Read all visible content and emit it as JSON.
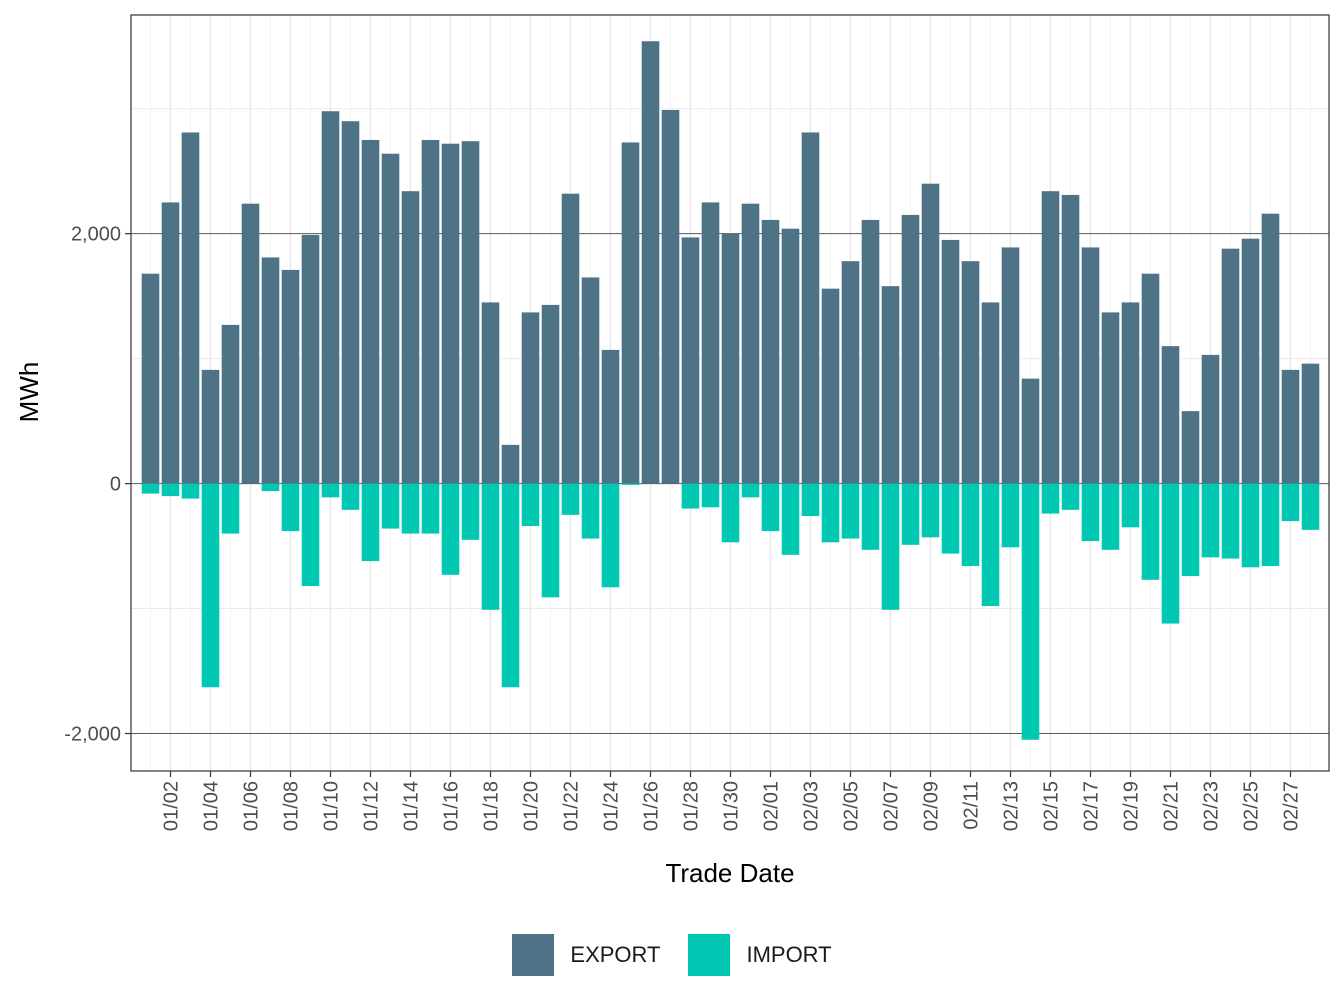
{
  "chart_data": {
    "type": "bar",
    "stacked": true,
    "xlabel": "Trade Date",
    "ylabel": "MWh",
    "ylim": [
      -2300,
      3750
    ],
    "yticks": [
      -2000,
      0,
      2000
    ],
    "ytick_labels": [
      "-2,000",
      "0",
      "2,000"
    ],
    "xtick_labels": [
      "01/02",
      "01/04",
      "01/06",
      "01/08",
      "01/10",
      "01/12",
      "01/14",
      "01/16",
      "01/18",
      "01/20",
      "01/22",
      "01/24",
      "01/26",
      "01/28",
      "01/30",
      "02/01",
      "02/03",
      "02/05",
      "02/07",
      "02/09",
      "02/11",
      "02/13",
      "02/15",
      "02/17",
      "02/19",
      "02/21",
      "02/23",
      "02/25",
      "02/27"
    ],
    "categories": [
      "01/01",
      "01/02",
      "01/03",
      "01/04",
      "01/05",
      "01/06",
      "01/07",
      "01/08",
      "01/09",
      "01/10",
      "01/11",
      "01/12",
      "01/13",
      "01/14",
      "01/15",
      "01/16",
      "01/17",
      "01/18",
      "01/19",
      "01/20",
      "01/21",
      "01/22",
      "01/23",
      "01/24",
      "01/25",
      "01/26",
      "01/27",
      "01/28",
      "01/29",
      "01/30",
      "01/31",
      "02/01",
      "02/02",
      "02/03",
      "02/04",
      "02/05",
      "02/06",
      "02/07",
      "02/08",
      "02/09",
      "02/10",
      "02/11",
      "02/12",
      "02/13",
      "02/14",
      "02/15",
      "02/16",
      "02/17",
      "02/18",
      "02/19",
      "02/20",
      "02/21",
      "02/22",
      "02/23",
      "02/24",
      "02/25",
      "02/26",
      "02/27",
      "02/28"
    ],
    "series": [
      {
        "name": "EXPORT",
        "color": "#4e7387",
        "values": [
          1680,
          2250,
          2810,
          910,
          1270,
          2240,
          1810,
          1710,
          1990,
          2980,
          2900,
          2750,
          2640,
          2340,
          2750,
          2720,
          2740,
          1450,
          310,
          1370,
          1430,
          2320,
          1650,
          1070,
          2730,
          3540,
          2990,
          1970,
          2250,
          2000,
          2240,
          2110,
          2040,
          2810,
          1560,
          1780,
          2110,
          1580,
          2150,
          2400,
          1950,
          1780,
          1450,
          1890,
          840,
          2340,
          2310,
          1890,
          1370,
          1450,
          1680,
          1100,
          580,
          1030,
          1880,
          1960,
          2160,
          910,
          960
        ]
      },
      {
        "name": "IMPORT",
        "color": "#00c8b2",
        "values": [
          -80,
          -100,
          -120,
          -1630,
          -400,
          0,
          -60,
          -380,
          -820,
          -110,
          -210,
          -620,
          -360,
          -400,
          -400,
          -730,
          -450,
          -1010,
          -1630,
          -340,
          -910,
          -250,
          -440,
          -830,
          -10,
          0,
          0,
          -200,
          -190,
          -470,
          -110,
          -380,
          -570,
          -260,
          -470,
          -440,
          -530,
          -1010,
          -490,
          -430,
          -560,
          -660,
          -980,
          -510,
          -2050,
          -240,
          -210,
          -460,
          -530,
          -350,
          -770,
          -1120,
          -740,
          -590,
          -600,
          -670,
          -660,
          -300,
          -370
        ]
      }
    ]
  }
}
